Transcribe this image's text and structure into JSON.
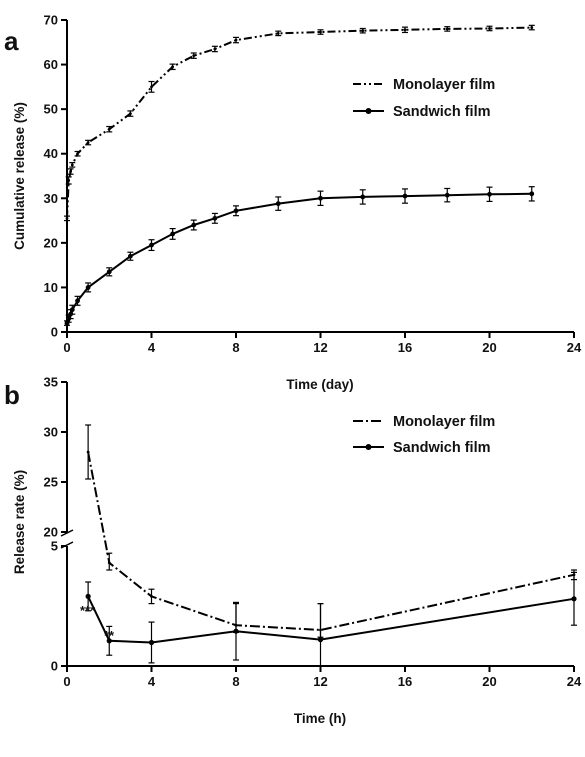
{
  "chart_data": [
    {
      "panel": "a",
      "type": "line",
      "xlabel": "Time (day)",
      "ylabel": "Cumulative release (%)",
      "xlim": [
        0,
        24
      ],
      "ylim": [
        0,
        70
      ],
      "xticks": [
        0,
        4,
        8,
        12,
        16,
        20,
        24
      ],
      "yticks": [
        0,
        10,
        20,
        30,
        40,
        50,
        60,
        70
      ],
      "grid": false,
      "legend": "top-right",
      "series": [
        {
          "name": "Monolayer film",
          "style": "dash-dot-dot",
          "x": [
            0,
            0.08,
            0.17,
            0.25,
            0.5,
            1,
            2,
            3,
            4,
            5,
            6,
            7,
            8,
            10,
            12,
            14,
            16,
            18,
            20,
            22
          ],
          "y": [
            25.5,
            34,
            36,
            37.5,
            40,
            42.5,
            45.5,
            49,
            55,
            59.5,
            62,
            63.5,
            65.5,
            67,
            67.3,
            67.6,
            67.8,
            68,
            68.1,
            68.3
          ],
          "err": [
            0.5,
            0.8,
            0.6,
            0.5,
            0.5,
            0.5,
            0.6,
            0.6,
            1.2,
            0.6,
            0.6,
            0.6,
            0.6,
            0.5,
            0.5,
            0.5,
            0.6,
            0.5,
            0.5,
            0.5
          ]
        },
        {
          "name": "Sandwich film",
          "style": "solid",
          "marker": "circle",
          "x": [
            0,
            0.08,
            0.17,
            0.25,
            0.5,
            1,
            2,
            3,
            4,
            5,
            6,
            7,
            8,
            10,
            12,
            14,
            16,
            18,
            20,
            22
          ],
          "y": [
            2,
            3,
            4,
            5,
            7,
            10,
            13.5,
            17,
            19.5,
            22,
            24,
            25.5,
            27.2,
            28.8,
            30,
            30.3,
            30.5,
            30.7,
            30.9,
            31
          ],
          "err": [
            0.5,
            0.8,
            1,
            1,
            1,
            1,
            0.9,
            0.9,
            1.2,
            1.2,
            1.1,
            1.1,
            1.1,
            1.5,
            1.6,
            1.6,
            1.6,
            1.5,
            1.6,
            1.6
          ]
        }
      ]
    },
    {
      "panel": "b",
      "type": "line",
      "xlabel": "Time (h)",
      "ylabel": "Release rate (%)",
      "xlim": [
        0,
        24
      ],
      "xticks": [
        0,
        4,
        8,
        12,
        16,
        20,
        24
      ],
      "yticks": [
        0,
        5,
        20,
        25,
        30,
        35
      ],
      "axis_break": {
        "lower_range": [
          0,
          5
        ],
        "upper_range": [
          20,
          35
        ]
      },
      "grid": false,
      "legend": "top-right",
      "series": [
        {
          "name": "Monolayer film",
          "style": "dash-dot-dot",
          "x": [
            1,
            2,
            4,
            8,
            12,
            24
          ],
          "y": [
            28,
            4.3,
            2.9,
            1.7,
            1.5,
            3.8
          ],
          "err_plus": [
            2.7,
            0.4,
            0.3,
            0.9,
            1.1,
            0.2
          ],
          "err_minus": [
            2.7,
            0.3,
            0.3,
            0.3,
            0.3,
            0.2
          ]
        },
        {
          "name": "Sandwich film",
          "style": "solid",
          "marker": "circle",
          "x": [
            1,
            2,
            4,
            8,
            12,
            24
          ],
          "y": [
            2.9,
            1.05,
            0.98,
            1.45,
            1.1,
            2.8
          ],
          "err_plus": [
            0.6,
            0.6,
            0.85,
            1.2,
            1.5,
            1.1
          ],
          "err_minus": [
            0.6,
            0.6,
            0.85,
            1.2,
            1.5,
            1.1
          ]
        }
      ],
      "annotations": [
        {
          "text": "***",
          "x": 1
        },
        {
          "text": "**",
          "x": 2
        }
      ]
    }
  ]
}
